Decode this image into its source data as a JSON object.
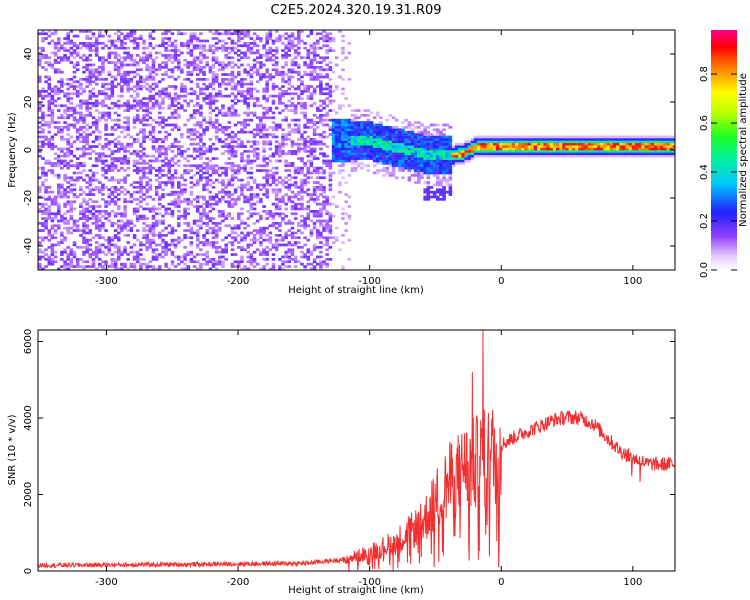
{
  "title": "C2E5.2024.320.19.31.R09",
  "colors": {
    "snr_line": "#f03030",
    "colormap": [
      "#ffffff",
      "#7a00ff",
      "#0000ff",
      "#00d8ff",
      "#00ff00",
      "#ffff00",
      "#ff8000",
      "#ff0000",
      "#ff0080"
    ]
  },
  "chart_data": [
    {
      "type": "heatmap",
      "title": "C2E5.2024.320.19.31.R09",
      "xlabel": "Height of straight line (km)",
      "ylabel": "Frequency (Hz)",
      "xlim": [
        -352,
        132
      ],
      "ylim": [
        -50,
        50
      ],
      "x_ticks": [
        "-300",
        "-200",
        "-100",
        "0",
        "100"
      ],
      "y_ticks": [
        "40",
        "20",
        "0",
        "-20",
        "-40"
      ],
      "colorbar": {
        "label": "Normalized spectral amplitude",
        "range": [
          0,
          0.98
        ],
        "ticks": [
          "0.0",
          "0.2",
          "0.4",
          "0.6",
          "0.8"
        ]
      },
      "regions": [
        {
          "x_range": [
            -352,
            -130
          ],
          "freq_range": [
            -50,
            50
          ],
          "amplitude": 0.1,
          "description": "broadband noise"
        },
        {
          "x_range": [
            -130,
            -40
          ],
          "freq_range": [
            -15,
            12
          ],
          "amplitude": 0.35
        },
        {
          "x_range": [
            -40,
            132
          ],
          "freq_range": [
            -2,
            3
          ],
          "amplitude": 0.85
        }
      ],
      "ridge": [
        {
          "x": -130,
          "f": 4
        },
        {
          "x": -100,
          "f": 3
        },
        {
          "x": -75,
          "f": 0
        },
        {
          "x": -60,
          "f": -2
        },
        {
          "x": -45,
          "f": -3
        },
        {
          "x": -30,
          "f": -2
        },
        {
          "x": -20,
          "f": 1
        },
        {
          "x": -10,
          "f": 1
        },
        {
          "x": 0,
          "f": 1
        },
        {
          "x": 30,
          "f": 1
        },
        {
          "x": 100,
          "f": 1
        },
        {
          "x": 132,
          "f": 1
        }
      ]
    },
    {
      "type": "line",
      "xlabel": "Height of straight line (km)",
      "ylabel": "SNR (10 * v/v)",
      "xlim": [
        -352,
        132
      ],
      "ylim": [
        0,
        6300
      ],
      "x_ticks": [
        "-300",
        "-200",
        "-100",
        "0",
        "100"
      ],
      "y_ticks": [
        "0",
        "2000",
        "4000",
        "6000"
      ],
      "series": [
        {
          "envelope": [
            {
              "x": -352,
              "y": 150
            },
            {
              "x": -250,
              "y": 170
            },
            {
              "x": -150,
              "y": 200
            },
            {
              "x": -120,
              "y": 300
            },
            {
              "x": -100,
              "y": 500
            },
            {
              "x": -80,
              "y": 800
            },
            {
              "x": -60,
              "y": 1300
            },
            {
              "x": -50,
              "y": 1900
            },
            {
              "x": -40,
              "y": 2400
            },
            {
              "x": -30,
              "y": 2700
            },
            {
              "x": -20,
              "y": 2900
            },
            {
              "x": -10,
              "y": 3100
            },
            {
              "x": 0,
              "y": 3300
            },
            {
              "x": 10,
              "y": 3500
            },
            {
              "x": 20,
              "y": 3650
            },
            {
              "x": 30,
              "y": 3800
            },
            {
              "x": 40,
              "y": 3950
            },
            {
              "x": 50,
              "y": 4020
            },
            {
              "x": 60,
              "y": 4000
            },
            {
              "x": 70,
              "y": 3850
            },
            {
              "x": 80,
              "y": 3500
            },
            {
              "x": 90,
              "y": 3150
            },
            {
              "x": 100,
              "y": 2950
            },
            {
              "x": 110,
              "y": 2820
            },
            {
              "x": 120,
              "y": 2780
            },
            {
              "x": 132,
              "y": 2800
            }
          ],
          "spikes": [
            {
              "x": -14,
              "y": 6300
            },
            {
              "x": -22,
              "y": 5200
            },
            {
              "x": -18,
              "y": 3900
            },
            {
              "x": -28,
              "y": 3600
            }
          ]
        }
      ]
    }
  ]
}
